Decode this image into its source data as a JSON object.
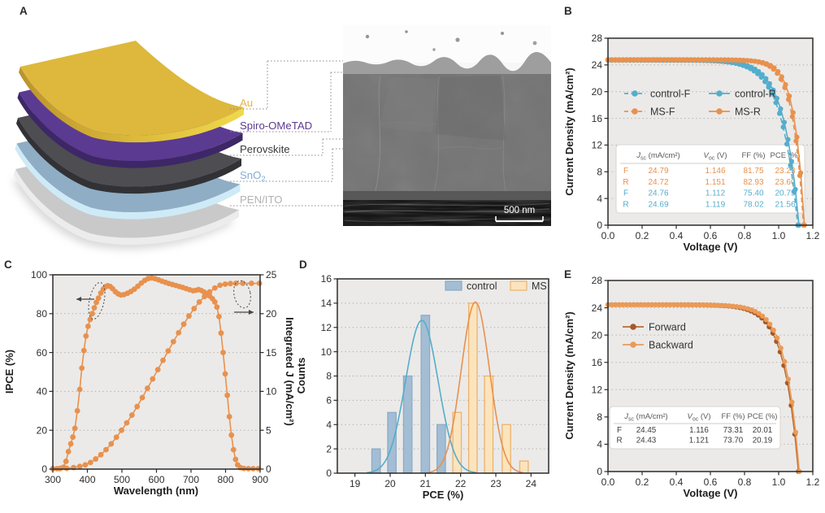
{
  "figure_bg": "#ffffff",
  "colors": {
    "blue": "#55adcc",
    "orange": "#e8914e",
    "forward": "#a5582b",
    "backward": "#eb9a55",
    "plot_bg": "#ebeae8"
  },
  "panels": {
    "a": {
      "label": "A",
      "layers": [
        {
          "name": "Au",
          "sub": "",
          "surface": "#ddb83c",
          "edge": "#e9cf45",
          "label_color": "#e7b63e"
        },
        {
          "name": "Spiro-OMeTAD",
          "sub": "",
          "surface": "#5b3a92",
          "edge": "#3d2766",
          "label_color": "#5b3a92"
        },
        {
          "name": "Perovskite",
          "sub": "",
          "surface": "#4d4d52",
          "edge": "#323236",
          "label_color": "#3a3a3c"
        },
        {
          "name": "SnO",
          "sub": "2",
          "surface": "#8fadc4",
          "edge": "#cfeaf7",
          "label_color": "#86aed3"
        },
        {
          "name": "PEN/ITO",
          "sub": "",
          "surface": "#c9c9c9",
          "edge": "#ececec",
          "label_color": "#b2b2b2"
        }
      ],
      "sem_scale_bar": "500 nm"
    },
    "b": {
      "label": "B"
    },
    "c": {
      "label": "C"
    },
    "d": {
      "label": "D"
    },
    "e": {
      "label": "E"
    }
  },
  "chart_data": [
    {
      "panel": "B",
      "type": "jv_line",
      "xlabel": "Voltage (V)",
      "ylabel": "Current Density (mA/cm²)",
      "xlim": [
        0,
        1.2
      ],
      "ylim": [
        0,
        28
      ],
      "xticks": [
        0,
        0.2,
        0.4,
        0.6,
        0.8,
        1.0,
        1.2
      ],
      "xtick_decimals": 1,
      "yticks": [
        0,
        4,
        8,
        12,
        16,
        20,
        24,
        28
      ],
      "grid": true,
      "legend_position": "upper-left-inside",
      "series": [
        {
          "name": "control-F",
          "color": "#55adcc",
          "dash": true,
          "jsc": 24.76,
          "voc": 1.112,
          "knee": 0.095
        },
        {
          "name": "control-R",
          "color": "#55adcc",
          "dash": false,
          "jsc": 24.69,
          "voc": 1.119,
          "knee": 0.088
        },
        {
          "name": "MS-F",
          "color": "#e8914e",
          "dash": true,
          "jsc": 24.79,
          "voc": 1.146,
          "knee": 0.062
        },
        {
          "name": "MS-R",
          "color": "#e8914e",
          "dash": false,
          "jsc": 24.72,
          "voc": 1.151,
          "knee": 0.058
        }
      ],
      "table": {
        "headers": [
          [
            "J",
            "sc",
            "(mA/cm²)"
          ],
          [
            "V",
            "oc",
            "(V)"
          ],
          [
            "FF",
            "",
            "(%)"
          ],
          [
            "PCE",
            "",
            "(%)"
          ]
        ],
        "rows": [
          {
            "label": "F",
            "color": "#e8914e",
            "values": [
              "24.79",
              "1.146",
              "81.75",
              "23.23"
            ]
          },
          {
            "label": "R",
            "color": "#e8914e",
            "values": [
              "24.72",
              "1.151",
              "82.93",
              "23.60"
            ]
          },
          {
            "label": "F",
            "color": "#55adcc",
            "values": [
              "24.76",
              "1.112",
              "75.40",
              "20.75"
            ]
          },
          {
            "label": "R",
            "color": "#55adcc",
            "values": [
              "24.69",
              "1.119",
              "78.02",
              "21.56"
            ]
          }
        ]
      }
    },
    {
      "panel": "C",
      "type": "line",
      "xlabel": "Wavelength (nm)",
      "ylabel": "IPCE (%)",
      "ylabel_right": "Integrated J (mA/cm²)",
      "xlim": [
        300,
        900
      ],
      "ylim": [
        0,
        100
      ],
      "ylim_right": [
        0,
        25
      ],
      "xticks": [
        300,
        400,
        500,
        600,
        700,
        800,
        900
      ],
      "xtick_decimals": 0,
      "yticks": [
        0,
        20,
        40,
        60,
        80,
        100
      ],
      "yticks_right": [
        0,
        5,
        10,
        15,
        20,
        25
      ],
      "grid": true,
      "series": [
        {
          "name": "Integrated J",
          "axis": "right",
          "color": "#e8914e",
          "points": [
            [
              300,
              0.05
            ],
            [
              320,
              0.05
            ],
            [
              340,
              0.1
            ],
            [
              360,
              0.2
            ],
            [
              378,
              0.35
            ],
            [
              394,
              0.55
            ],
            [
              409,
              0.85
            ],
            [
              424,
              1.3
            ],
            [
              439,
              1.85
            ],
            [
              454,
              2.5
            ],
            [
              469,
              3.25
            ],
            [
              484,
              4.1
            ],
            [
              499,
              5.0
            ],
            [
              514,
              5.95
            ],
            [
              529,
              6.95
            ],
            [
              544,
              8.05
            ],
            [
              559,
              9.2
            ],
            [
              574,
              10.4
            ],
            [
              589,
              11.6
            ],
            [
              604,
              12.8
            ],
            [
              619,
              14.0
            ],
            [
              634,
              15.2
            ],
            [
              649,
              16.4
            ],
            [
              664,
              17.55
            ],
            [
              679,
              18.65
            ],
            [
              694,
              19.7
            ],
            [
              709,
              20.65
            ],
            [
              724,
              21.5
            ],
            [
              739,
              22.2
            ],
            [
              754,
              22.8
            ],
            [
              769,
              23.3
            ],
            [
              784,
              23.65
            ],
            [
              799,
              23.8
            ],
            [
              814,
              23.87
            ],
            [
              830,
              23.9
            ],
            [
              850,
              23.9
            ],
            [
              875,
              23.9
            ],
            [
              898,
              23.9
            ]
          ]
        },
        {
          "name": "IPCE",
          "axis": "left",
          "color": "#e8914e",
          "points": [
            [
              300,
              0.2
            ],
            [
              312,
              0.2
            ],
            [
              322,
              0.4
            ],
            [
              331,
              1
            ],
            [
              338,
              4
            ],
            [
              345,
              9
            ],
            [
              352,
              13
            ],
            [
              358,
              16.5
            ],
            [
              364,
              21
            ],
            [
              371,
              30
            ],
            [
              378,
              41
            ],
            [
              384,
              52
            ],
            [
              390,
              61
            ],
            [
              396,
              68.5
            ],
            [
              402,
              73.5
            ],
            [
              408,
              77
            ],
            [
              414,
              80
            ],
            [
              420,
              83
            ],
            [
              426,
              85.8
            ],
            [
              432,
              88
            ],
            [
              439,
              90.6
            ],
            [
              446,
              92.6
            ],
            [
              453,
              93.9
            ],
            [
              459,
              94.4
            ],
            [
              466,
              94
            ],
            [
              473,
              92.9
            ],
            [
              481,
              91.3
            ],
            [
              489,
              90.2
            ],
            [
              497,
              89.6
            ],
            [
              506,
              89.8
            ],
            [
              516,
              90.5
            ],
            [
              526,
              91.4
            ],
            [
              536,
              92.6
            ],
            [
              546,
              94.1
            ],
            [
              556,
              95.7
            ],
            [
              566,
              97.1
            ],
            [
              576,
              98.1
            ],
            [
              586,
              98.4
            ],
            [
              596,
              98
            ],
            [
              606,
              97.4
            ],
            [
              616,
              96.7
            ],
            [
              626,
              96.1
            ],
            [
              636,
              95.5
            ],
            [
              646,
              95
            ],
            [
              656,
              94.5
            ],
            [
              666,
              94
            ],
            [
              676,
              93.5
            ],
            [
              686,
              92.9
            ],
            [
              696,
              92.3
            ],
            [
              706,
              91.8
            ],
            [
              714,
              92
            ],
            [
              722,
              92.4
            ],
            [
              730,
              91.9
            ],
            [
              738,
              91.1
            ],
            [
              746,
              90.2
            ],
            [
              754,
              89.1
            ],
            [
              762,
              87.7
            ],
            [
              769,
              86
            ],
            [
              775,
              83.4
            ],
            [
              781,
              78.5
            ],
            [
              787,
              70
            ],
            [
              793,
              60
            ],
            [
              799,
              49
            ],
            [
              805,
              38
            ],
            [
              811,
              27
            ],
            [
              817,
              17.5
            ],
            [
              823,
              10
            ],
            [
              829,
              5
            ],
            [
              835,
              2.2
            ],
            [
              843,
              0.8
            ],
            [
              853,
              0.3
            ],
            [
              866,
              0.2
            ],
            [
              880,
              0.2
            ],
            [
              895,
              0.2
            ]
          ]
        }
      ]
    },
    {
      "panel": "D",
      "type": "histogram",
      "xlabel": "PCE (%)",
      "ylabel": "Counts",
      "xlim": [
        18.5,
        24.5
      ],
      "ylim": [
        0,
        16
      ],
      "xticks": [
        19,
        20,
        21,
        22,
        23,
        24
      ],
      "xtick_decimals": 0,
      "yticks": [
        0,
        2,
        4,
        6,
        8,
        10,
        12,
        14,
        16
      ],
      "grid": true,
      "bar_width": 0.24,
      "series": [
        {
          "name": "control",
          "bar_fill": "#a3bdd4",
          "bar_stroke": "#8cacc8",
          "curve_color": "#55adcc",
          "centers": [
            19.6,
            20.05,
            20.5,
            21.0,
            21.45
          ],
          "counts": [
            2,
            5,
            8,
            13,
            4
          ],
          "gauss_amp": 12.6,
          "gauss_mu": 20.9,
          "gauss_sigma": 0.46
        },
        {
          "name": "MS",
          "bar_fill": "#fbe4bd",
          "bar_stroke": "#edb26e",
          "curve_color": "#e8914e",
          "centers": [
            21.9,
            22.35,
            22.8,
            23.3,
            23.8
          ],
          "counts": [
            5,
            14,
            8,
            4,
            1
          ],
          "gauss_amp": 14.1,
          "gauss_mu": 22.42,
          "gauss_sigma": 0.4
        }
      ]
    },
    {
      "panel": "E",
      "type": "jv_line",
      "xlabel": "Voltage (V)",
      "ylabel": "Current Density (mA/cm²)",
      "xlim": [
        0,
        1.2
      ],
      "ylim": [
        0,
        28
      ],
      "xticks": [
        0,
        0.2,
        0.4,
        0.6,
        0.8,
        1.0,
        1.2
      ],
      "xtick_decimals": 1,
      "yticks": [
        0,
        4,
        8,
        12,
        16,
        20,
        24,
        28
      ],
      "grid": true,
      "series": [
        {
          "name": "Forward",
          "color": "#bc6a35",
          "marker_color": "#a5582b",
          "dash": false,
          "jsc": 24.45,
          "voc": 1.116,
          "knee": 0.085
        },
        {
          "name": "Backward",
          "color": "#eb9a55",
          "dash": false,
          "jsc": 24.43,
          "voc": 1.121,
          "knee": 0.08
        }
      ],
      "table": {
        "headers": [
          [
            "J",
            "sc",
            "(mA/cm²)"
          ],
          [
            "V",
            "oc",
            "(V)"
          ],
          [
            "FF",
            "",
            "(%)"
          ],
          [
            "PCE",
            "",
            "(%)"
          ]
        ],
        "rows": [
          {
            "label": "F",
            "color": "#3c3c3c",
            "values": [
              "24.45",
              "1.116",
              "73.31",
              "20.01"
            ]
          },
          {
            "label": "R",
            "color": "#3c3c3c",
            "values": [
              "24.43",
              "1.121",
              "73.70",
              "20.19"
            ]
          }
        ]
      }
    }
  ]
}
